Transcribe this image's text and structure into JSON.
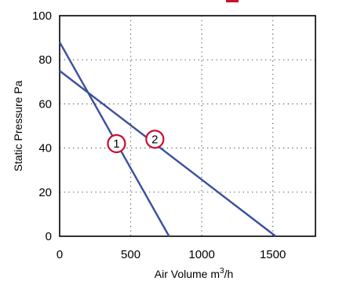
{
  "chart_data": {
    "type": "line",
    "xlabel": "Air Volume m",
    "xlabel_sup": "3",
    "xlabel_suffix": "/h",
    "ylabel": "Static Pressure Pa",
    "xlim": [
      0,
      1800
    ],
    "ylim": [
      0,
      100
    ],
    "x_ticks": [
      0,
      500,
      1000,
      1500
    ],
    "y_ticks": [
      0,
      20,
      40,
      60,
      80,
      100
    ],
    "grid": true,
    "series": [
      {
        "marker_label": "1",
        "x": [
          0,
          770
        ],
        "y": [
          88,
          0
        ],
        "color": "#3a4f9e"
      },
      {
        "marker_label": "2",
        "x": [
          0,
          1520
        ],
        "y": [
          75,
          0
        ],
        "color": "#3a4f9e"
      }
    ],
    "markers": [
      {
        "label": "1",
        "x": 400,
        "y": 42
      },
      {
        "label": "2",
        "x": 670,
        "y": 44
      }
    ],
    "accent_color": "#c8102e"
  }
}
